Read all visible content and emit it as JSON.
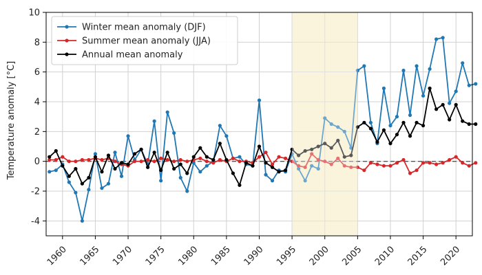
{
  "chart_data": {
    "type": "line",
    "title": "",
    "xlabel": "",
    "ylabel": "Temperature anomaly [°C]",
    "xlim": [
      1957.5,
      2022.5
    ],
    "ylim": [
      -5,
      10
    ],
    "x_ticks": [
      1960,
      1965,
      1970,
      1975,
      1980,
      1985,
      1990,
      1995,
      2000,
      2005,
      2010,
      2015,
      2020
    ],
    "y_ticks": [
      -4,
      -2,
      0,
      2,
      4,
      6,
      8,
      10
    ],
    "grid": true,
    "legend_position": "top-left",
    "reference_line": {
      "y": 0,
      "style": "dashed",
      "color": "#555555"
    },
    "highlight_span": {
      "x_start": 1995,
      "x_end": 2005,
      "color": "#f5eab8"
    },
    "series": [
      {
        "name": "Winter mean anomaly (DJF)",
        "color": "#1f77b4",
        "x": [
          1958,
          1959,
          1960,
          1961,
          1962,
          1963,
          1964,
          1965,
          1966,
          1967,
          1968,
          1969,
          1970,
          1971,
          1972,
          1973,
          1974,
          1975,
          1976,
          1977,
          1978,
          1979,
          1980,
          1981,
          1982,
          1983,
          1984,
          1985,
          1986,
          1987,
          1988,
          1989,
          1990,
          1991,
          1992,
          1993,
          1994,
          1995,
          1996,
          1997,
          1998,
          1999,
          2000,
          2001,
          2002,
          2003,
          2004,
          2005,
          2006,
          2007,
          2008,
          2009,
          2010,
          2011,
          2012,
          2013,
          2014,
          2015,
          2016,
          2017,
          2018,
          2019,
          2020,
          2021,
          2022,
          2023
        ],
        "values": [
          -0.7,
          -0.6,
          -0.2,
          -1.4,
          -2.1,
          -4.0,
          -1.9,
          0.5,
          -1.8,
          -1.5,
          0.6,
          -1.0,
          1.7,
          0.1,
          0.8,
          -0.2,
          2.7,
          -1.3,
          3.3,
          1.9,
          -1.1,
          -2.0,
          -0.1,
          -0.7,
          -0.3,
          0.0,
          2.4,
          1.7,
          0.2,
          0.3,
          -0.2,
          -0.3,
          4.1,
          -0.9,
          -1.3,
          -0.6,
          -0.7,
          0.5,
          -0.5,
          -1.3,
          -0.3,
          -0.5,
          2.9,
          2.5,
          2.3,
          2.0,
          0.9,
          6.1,
          6.4,
          2.6,
          1.2,
          4.9,
          2.4,
          3.0,
          6.1,
          3.1,
          6.4,
          4.4,
          6.2,
          8.2,
          8.3,
          3.9,
          4.7,
          6.6,
          5.1,
          5.2
        ]
      },
      {
        "name": "Summer mean anomaly (JJA)",
        "color": "#d62728",
        "x": [
          1958,
          1959,
          1960,
          1961,
          1962,
          1963,
          1964,
          1965,
          1966,
          1967,
          1968,
          1969,
          1970,
          1971,
          1972,
          1973,
          1974,
          1975,
          1976,
          1977,
          1978,
          1979,
          1980,
          1981,
          1982,
          1983,
          1984,
          1985,
          1986,
          1987,
          1988,
          1989,
          1990,
          1991,
          1992,
          1993,
          1994,
          1995,
          1996,
          1997,
          1998,
          1999,
          2000,
          2001,
          2002,
          2003,
          2004,
          2005,
          2006,
          2007,
          2008,
          2009,
          2010,
          2011,
          2012,
          2013,
          2014,
          2015,
          2016,
          2017,
          2018,
          2019,
          2020,
          2021,
          2022,
          2023
        ],
        "values": [
          0.1,
          0.1,
          0.3,
          0.0,
          0.0,
          0.1,
          0.1,
          0.2,
          0.1,
          0.2,
          0.0,
          -0.2,
          -0.3,
          0.0,
          0.0,
          0.1,
          0.0,
          0.2,
          0.1,
          0.0,
          0.1,
          0.0,
          0.1,
          0.2,
          0.0,
          -0.1,
          0.1,
          0.0,
          0.2,
          0.0,
          0.0,
          -0.1,
          0.3,
          0.6,
          -0.2,
          0.3,
          0.2,
          0.0,
          -0.3,
          -0.4,
          0.5,
          0.1,
          0.0,
          -0.2,
          0.2,
          -0.3,
          -0.4,
          -0.4,
          -0.6,
          -0.1,
          -0.2,
          -0.3,
          -0.3,
          -0.1,
          0.1,
          -0.8,
          -0.6,
          -0.1,
          -0.1,
          -0.2,
          -0.1,
          0.1,
          0.3,
          -0.1,
          -0.3,
          -0.1
        ]
      },
      {
        "name": "Annual mean anomaly",
        "color": "#000000",
        "x": [
          1958,
          1959,
          1960,
          1961,
          1962,
          1963,
          1964,
          1965,
          1966,
          1967,
          1968,
          1969,
          1970,
          1971,
          1972,
          1973,
          1974,
          1975,
          1976,
          1977,
          1978,
          1979,
          1980,
          1981,
          1982,
          1983,
          1984,
          1985,
          1986,
          1987,
          1988,
          1989,
          1990,
          1991,
          1992,
          1993,
          1994,
          1995,
          1996,
          1997,
          1998,
          1999,
          2000,
          2001,
          2002,
          2003,
          2004,
          2005,
          2006,
          2007,
          2008,
          2009,
          2010,
          2011,
          2012,
          2013,
          2014,
          2015,
          2016,
          2017,
          2018,
          2019,
          2020,
          2021,
          2022,
          2023
        ],
        "values": [
          0.3,
          0.7,
          -0.3,
          -1.0,
          -0.5,
          -1.5,
          -1.1,
          0.3,
          -0.7,
          0.4,
          -0.5,
          -0.1,
          -0.2,
          0.5,
          0.8,
          -0.4,
          0.6,
          -0.6,
          0.6,
          -0.5,
          -0.2,
          -0.8,
          0.3,
          0.9,
          0.3,
          0.1,
          1.2,
          0.1,
          -0.8,
          -1.6,
          -0.1,
          -0.3,
          1.0,
          -0.1,
          -0.4,
          -0.7,
          -0.6,
          0.8,
          0.4,
          0.7,
          0.8,
          1.0,
          1.2,
          0.9,
          1.4,
          0.3,
          0.4,
          2.3,
          2.6,
          2.2,
          1.3,
          2.1,
          1.2,
          1.8,
          2.6,
          1.7,
          2.6,
          2.4,
          4.9,
          3.5,
          3.8,
          2.8,
          3.8,
          2.7,
          2.5,
          2.5
        ]
      }
    ]
  }
}
